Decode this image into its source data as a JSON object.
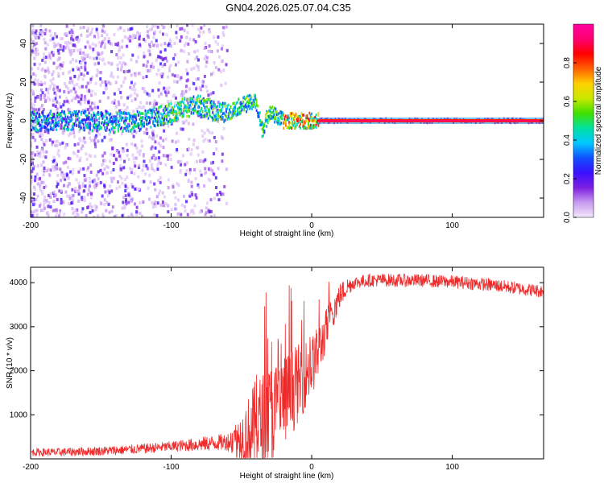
{
  "title": "GN04.2026.025.07.04.C35",
  "chart_data": [
    {
      "type": "heatmap",
      "name": "spectrogram",
      "xlabel": "Height of straight line (km)",
      "ylabel": "Frequency (Hz)",
      "xlim": [
        -200,
        165
      ],
      "ylim": [
        -50,
        50
      ],
      "xticks": [
        -200,
        -100,
        0,
        100
      ],
      "yticks": [
        -40,
        -20,
        0,
        20,
        40
      ],
      "colorbar": {
        "label": "Normalized spectral amplitude",
        "range": [
          0,
          1
        ],
        "ticks": [
          0.0,
          0.2,
          0.4,
          0.6,
          0.8
        ],
        "colors": [
          "#f4e8fb",
          "#c79af0",
          "#7d1fe0",
          "#3a10ff",
          "#1050ff",
          "#00c8ff",
          "#00e0a0",
          "#40e000",
          "#c8e800",
          "#ffd000",
          "#ff6000",
          "#ff0000",
          "#ff0070",
          "#ff00a0"
        ]
      },
      "ridge": {
        "x": [
          -200,
          -180,
          -160,
          -140,
          -120,
          -100,
          -90,
          -80,
          -70,
          -60,
          -50,
          -40,
          -35,
          -30,
          -25,
          -20,
          -10,
          0,
          5,
          165
        ],
        "y": [
          0,
          0,
          0,
          -1,
          0,
          4,
          7,
          8,
          5,
          4,
          8,
          10,
          -5,
          5,
          2,
          0,
          0,
          0,
          0,
          0
        ]
      }
    },
    {
      "type": "line",
      "name": "snr",
      "xlabel": "Height of straight line (km)",
      "ylabel": "SNR (10 * v/v)",
      "xlim": [
        -200,
        165
      ],
      "ylim": [
        0,
        4350
      ],
      "xticks": [
        -200,
        -100,
        0,
        100
      ],
      "yticks": [
        1000,
        2000,
        3000,
        4000
      ],
      "color": "#ee2a2a",
      "series": [
        {
          "name": "SNR",
          "x": [
            -200,
            -180,
            -160,
            -140,
            -120,
            -100,
            -80,
            -70,
            -60,
            -55,
            -50,
            -45,
            -40,
            -35,
            -30,
            -25,
            -20,
            -15,
            -10,
            -5,
            0,
            5,
            10,
            15,
            20,
            25,
            30,
            40,
            50,
            60,
            70,
            80,
            90,
            100,
            110,
            120,
            130,
            140,
            150,
            160,
            165
          ],
          "values": [
            150,
            150,
            170,
            190,
            230,
            280,
            330,
            360,
            390,
            420,
            480,
            580,
            700,
            820,
            950,
            1100,
            1300,
            1500,
            1700,
            1900,
            2100,
            2450,
            2900,
            3350,
            3700,
            3900,
            4000,
            4050,
            4060,
            4050,
            4050,
            4050,
            4030,
            4020,
            4000,
            3970,
            3940,
            3900,
            3860,
            3820,
            3800
          ]
        }
      ],
      "noise_amplitude": {
        "x": [
          -200,
          -100,
          -60,
          -50,
          -40,
          -30,
          -20,
          -10,
          0,
          10,
          20,
          30,
          165
        ],
        "values": [
          90,
          120,
          200,
          600,
          1100,
          1200,
          1100,
          900,
          700,
          500,
          300,
          150,
          150
        ]
      }
    }
  ]
}
